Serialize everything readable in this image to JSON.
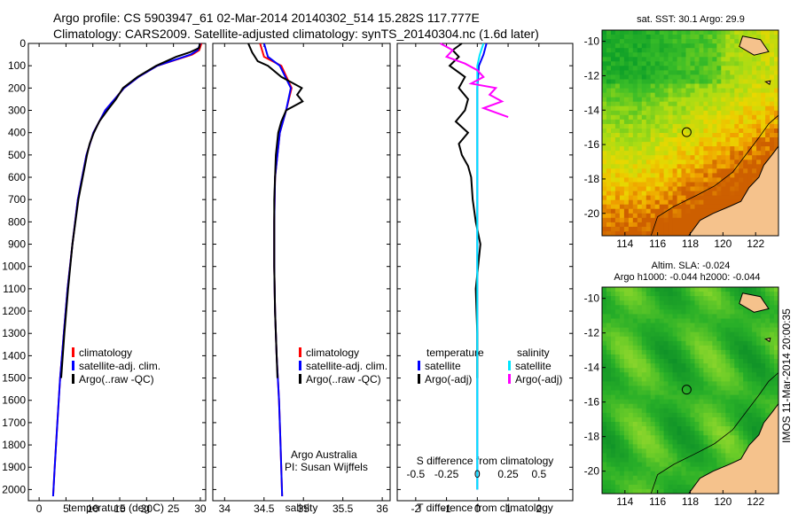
{
  "header": {
    "line1": "Argo profile: CS 5903947_61 02-Mar-2014 20140302_514 15.282S 117.777E",
    "line2": "Climatology: CARS2009. Satellite-adjusted climatology: synTS_20140304.nc (1.6d later)"
  },
  "colors": {
    "clim": "#ff0000",
    "sat": "#0000ff",
    "argo": "#000000",
    "sal_sat": "#00e6ff",
    "sal_argo": "#ff00ff",
    "land": "#f5c28c"
  },
  "depth_ticks": [
    "0",
    "100",
    "200",
    "300",
    "400",
    "500",
    "600",
    "700",
    "800",
    "900",
    "1000",
    "1100",
    "1200",
    "1300",
    "1400",
    "1500",
    "1600",
    "1700",
    "1800",
    "1900",
    "2000"
  ],
  "chart_data": [
    {
      "type": "line",
      "name": "temperature",
      "xlabel": "temperature (deg C)",
      "ylabel": "depth",
      "xlim": [
        -2,
        31
      ],
      "ylim": [
        2050,
        0
      ],
      "xticks": [
        "0",
        "5",
        "10",
        "15",
        "20",
        "25",
        "30"
      ],
      "xtick_values": [
        0,
        5,
        10,
        15,
        20,
        25,
        30
      ],
      "legend": [
        "climatology",
        "satellite-adj. clim.",
        "Argo(..raw -QC)"
      ],
      "series": [
        {
          "name": "climatology",
          "color": "#ff0000",
          "depth": [
            0,
            30,
            50,
            100,
            150,
            200,
            300,
            400,
            500,
            700,
            900,
            1100,
            1300,
            1500,
            1700,
            1900,
            2030
          ],
          "values": [
            30.2,
            29.8,
            28.5,
            22,
            18.5,
            15.8,
            12.3,
            10.1,
            8.8,
            7.2,
            6.2,
            5.3,
            4.6,
            3.9,
            3.4,
            2.9,
            2.6
          ]
        },
        {
          "name": "satellite-adj. clim.",
          "color": "#0000ff",
          "depth": [
            0,
            30,
            50,
            100,
            150,
            200,
            300,
            400,
            500,
            700,
            900,
            1100,
            1300,
            1500,
            1700,
            1900,
            2030
          ],
          "values": [
            30,
            29.5,
            28.2,
            22,
            18.5,
            15.8,
            12.3,
            10.1,
            8.8,
            7.2,
            6.2,
            5.3,
            4.6,
            3.9,
            3.4,
            2.9,
            2.6
          ]
        },
        {
          "name": "Argo(..raw -QC)",
          "color": "#000000",
          "depth": [
            0,
            20,
            40,
            60,
            100,
            150,
            200,
            250,
            300,
            350,
            400,
            450,
            500,
            700,
            900,
            1100,
            1300,
            1500
          ],
          "values": [
            29.9,
            29.8,
            28,
            25.5,
            21.8,
            18.3,
            15.6,
            14.3,
            12.7,
            11.2,
            10.2,
            9.4,
            8.9,
            7.3,
            6.2,
            5.4,
            4.7,
            4.1
          ]
        }
      ]
    },
    {
      "type": "line",
      "name": "salinity",
      "xlabel": "salinity",
      "xlim": [
        33.85,
        36.1
      ],
      "ylim": [
        2050,
        0
      ],
      "xticks": [
        "34",
        "34.5",
        "35",
        "35.5",
        "36"
      ],
      "xtick_values": [
        34,
        34.5,
        35,
        35.5,
        36
      ],
      "legend": [
        "climatology",
        "satellite-adj. clim.",
        "Argo(..raw -QC)"
      ],
      "annotation": [
        "Argo Australia",
        "PI: Susan Wijffels"
      ],
      "series": [
        {
          "name": "climatology",
          "color": "#ff0000",
          "depth": [
            0,
            60,
            100,
            200,
            300,
            400,
            600,
            800,
            1000,
            1200,
            1400,
            1600,
            1800,
            2030
          ],
          "values": [
            34.45,
            34.5,
            34.72,
            34.85,
            34.78,
            34.7,
            34.64,
            34.63,
            34.63,
            34.64,
            34.66,
            34.69,
            34.71,
            34.73
          ]
        },
        {
          "name": "satellite-adj. clim.",
          "color": "#0000ff",
          "depth": [
            0,
            60,
            100,
            200,
            300,
            400,
            600,
            800,
            1000,
            1200,
            1400,
            1600,
            1800,
            2030
          ],
          "values": [
            34.5,
            34.55,
            34.7,
            34.84,
            34.78,
            34.7,
            34.64,
            34.63,
            34.63,
            34.64,
            34.66,
            34.69,
            34.71,
            34.73
          ]
        },
        {
          "name": "Argo(..raw -QC)",
          "color": "#000000",
          "depth": [
            0,
            40,
            80,
            100,
            150,
            200,
            230,
            260,
            300,
            350,
            400,
            500,
            700,
            1000,
            1200,
            1400,
            1500
          ],
          "values": [
            34.3,
            34.35,
            34.42,
            34.55,
            34.72,
            34.98,
            34.92,
            34.99,
            34.78,
            34.72,
            34.68,
            34.65,
            34.63,
            34.63,
            34.64,
            34.66,
            34.67
          ]
        }
      ]
    },
    {
      "type": "line",
      "name": "difference from climatology",
      "xlabel": "T difference from climatology",
      "xlabel_top": "S difference from climatology",
      "xlim": [
        -2.6,
        3.1
      ],
      "ylim": [
        2050,
        0
      ],
      "xticks": [
        "-2",
        "-1",
        "0",
        "1",
        "2"
      ],
      "xtick_values": [
        -2,
        -1,
        0,
        1,
        2
      ],
      "xticks_top": [
        "-0.5",
        "-0.25",
        "0",
        "0.25",
        "0.5"
      ],
      "xtick_values_top": [
        -0.5,
        -0.25,
        0,
        0.25,
        0.5
      ],
      "legend_left_title": "temperature",
      "legend_right_title": "salinity",
      "legend_left": [
        "satellite",
        "Argo(-adj)"
      ],
      "legend_right": [
        "satellite",
        "Argo(-adj)"
      ],
      "series": [
        {
          "name": "T satellite",
          "color": "#0000ff",
          "depth": [
            0,
            50,
            100,
            200,
            300,
            500,
            800,
            1200,
            1600,
            2000
          ],
          "values": [
            0.3,
            0.2,
            0.05,
            0,
            0,
            0,
            0,
            0,
            0,
            0
          ]
        },
        {
          "name": "T Argo(-adj)",
          "color": "#000000",
          "depth": [
            0,
            30,
            60,
            100,
            150,
            200,
            250,
            300,
            350,
            400,
            450,
            500,
            550,
            600,
            700,
            800,
            900,
            1100,
            1300,
            1500
          ],
          "values": [
            -0.5,
            -0.8,
            -0.6,
            -0.9,
            -0.4,
            -0.6,
            -0.3,
            -0.4,
            -0.7,
            -0.3,
            -0.6,
            -0.5,
            -0.3,
            -0.2,
            -0.15,
            -0.05,
            0.1,
            -0.05,
            0,
            0
          ]
        },
        {
          "name": "S satellite",
          "color": "#00e6ff",
          "depth": [
            0,
            50,
            100,
            300,
            600,
            1000,
            1500,
            2000
          ],
          "values": [
            0.05,
            0.02,
            0,
            0,
            0,
            0,
            0,
            0
          ]
        },
        {
          "name": "S Argo(-adj)",
          "color": "#ff00ff",
          "depth": [
            0,
            30,
            60,
            90,
            120,
            150,
            180,
            200,
            230,
            260,
            290,
            330
          ],
          "values": [
            -0.3,
            -0.2,
            -0.25,
            -0.1,
            0.0,
            0.05,
            -0.05,
            0.15,
            0.1,
            0.2,
            0.05,
            0.25
          ]
        }
      ]
    }
  ],
  "maps": {
    "top": {
      "title": "sat. SST: 30.1  Argo: 29.9"
    },
    "bottom": {
      "title_line1": "Altim. SLA: -0.024",
      "title_line2": "Argo h1000: -0.044  h2000: -0.044"
    },
    "lon_ticks": [
      "114",
      "116",
      "118",
      "120",
      "122"
    ],
    "lat_ticks": [
      "-10",
      "-12",
      "-14",
      "-16",
      "-18",
      "-20"
    ],
    "argo_lon": 117.777,
    "argo_lat": -15.282
  },
  "footer": {
    "stamp": "IMOS 11-Mar-2014 20:00:35"
  }
}
